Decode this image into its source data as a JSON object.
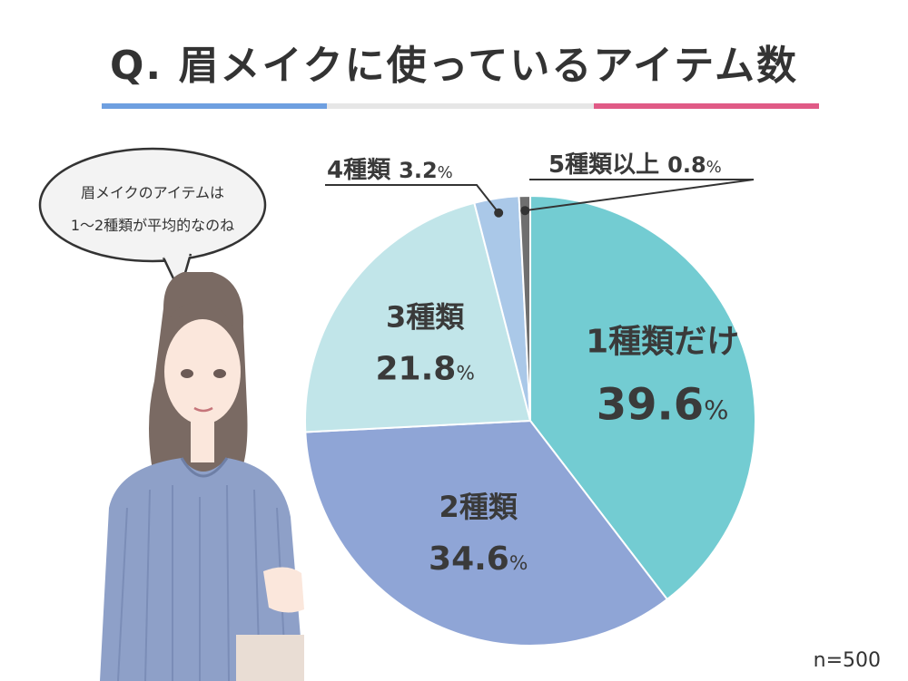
{
  "title": "Q. 眉メイクに使っているアイテム数",
  "bubble": {
    "line1": "眉メイクのアイテムは",
    "line2": "1～2種類が平均的なのね"
  },
  "sample_size": "n=500",
  "colors": {
    "accent_blue": "#6e9fe0",
    "accent_pink": "#e05a86",
    "bar_gray": "#e6e6e6"
  },
  "chart_data": {
    "type": "pie",
    "title": "Q. 眉メイクに使っているアイテム数",
    "slices": [
      {
        "label": "1種類だけ",
        "value": 39.6,
        "value_label": "39.6",
        "color": "#73ccd2"
      },
      {
        "label": "2種類",
        "value": 34.6,
        "value_label": "34.6",
        "color": "#8fa5d6"
      },
      {
        "label": "3種類",
        "value": 21.8,
        "value_label": "21.8",
        "color": "#c1e5e9"
      },
      {
        "label": "4種類",
        "value": 3.2,
        "value_label": "3.2",
        "color": "#aac8e8"
      },
      {
        "label": "5種類以上",
        "value": 0.8,
        "value_label": "0.8",
        "color": "#6f6f6f"
      }
    ],
    "unit": "%",
    "start": "12 o'clock",
    "direction": "clockwise"
  }
}
